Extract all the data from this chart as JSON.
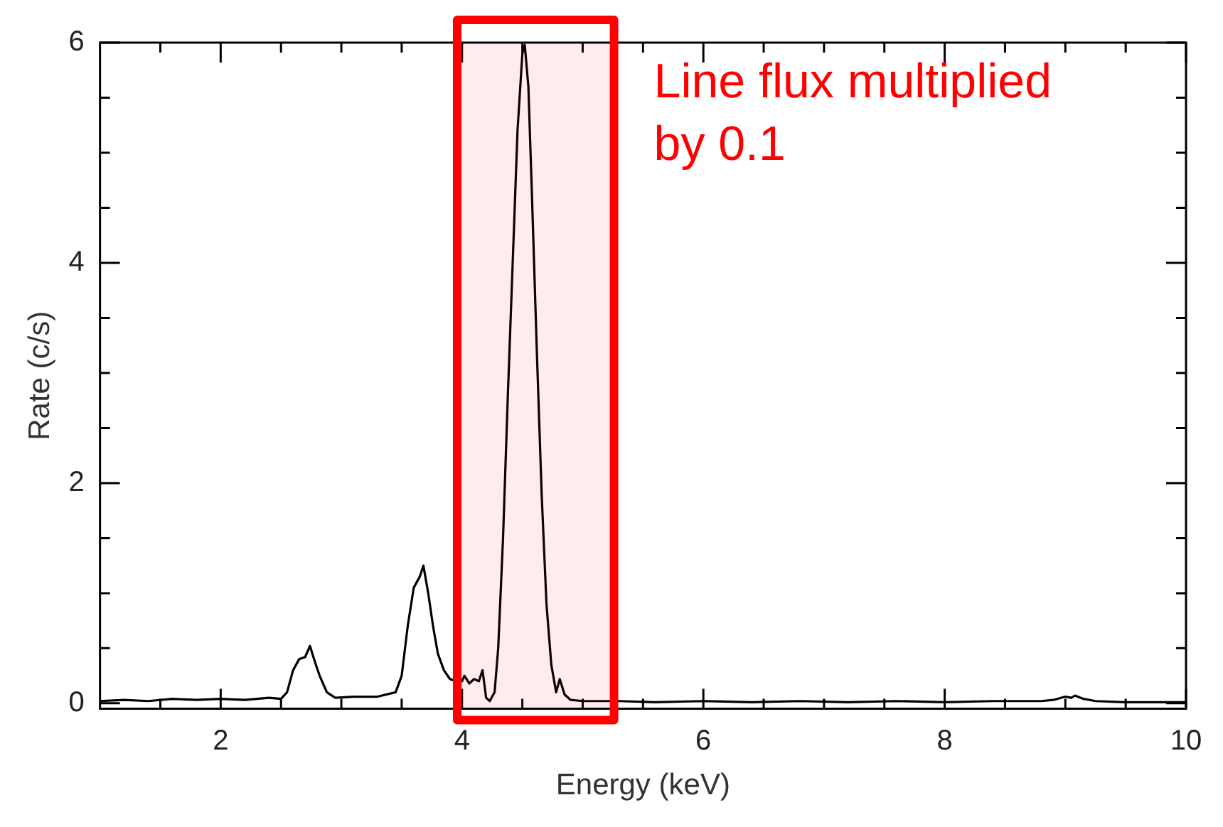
{
  "chart_data": {
    "type": "line",
    "xlabel": "Energy (keV)",
    "ylabel": "Rate (c/s)",
    "color": "#000000",
    "x": [
      1.0,
      1.2,
      1.4,
      1.6,
      1.8,
      2.0,
      2.2,
      2.4,
      2.5,
      2.55,
      2.6,
      2.65,
      2.7,
      2.74,
      2.78,
      2.82,
      2.88,
      2.95,
      3.1,
      3.3,
      3.45,
      3.5,
      3.55,
      3.6,
      3.65,
      3.68,
      3.72,
      3.76,
      3.8,
      3.85,
      3.9,
      3.95,
      4.0,
      4.02,
      4.06,
      4.1,
      4.14,
      4.17,
      4.2,
      4.23,
      4.27,
      4.3,
      4.34,
      4.38,
      4.42,
      4.46,
      4.5,
      4.52,
      4.55,
      4.58,
      4.62,
      4.66,
      4.7,
      4.74,
      4.78,
      4.81,
      4.85,
      4.9,
      5.0,
      5.3,
      5.6,
      6.0,
      6.4,
      6.8,
      7.2,
      7.6,
      8.0,
      8.4,
      8.8,
      8.9,
      9.0,
      9.05,
      9.08,
      9.15,
      9.25,
      9.5,
      10.0
    ],
    "values": [
      0.02,
      0.03,
      0.02,
      0.04,
      0.03,
      0.04,
      0.03,
      0.05,
      0.04,
      0.1,
      0.3,
      0.4,
      0.42,
      0.52,
      0.38,
      0.25,
      0.1,
      0.05,
      0.06,
      0.06,
      0.1,
      0.25,
      0.7,
      1.05,
      1.15,
      1.25,
      1.0,
      0.7,
      0.45,
      0.3,
      0.22,
      0.2,
      0.2,
      0.25,
      0.18,
      0.22,
      0.2,
      0.3,
      0.05,
      0.02,
      0.1,
      0.5,
      1.5,
      2.8,
      4.0,
      5.2,
      5.9,
      5.98,
      5.6,
      4.6,
      3.2,
      1.9,
      0.9,
      0.35,
      0.1,
      0.22,
      0.08,
      0.03,
      0.02,
      0.02,
      0.01,
      0.02,
      0.01,
      0.02,
      0.01,
      0.02,
      0.01,
      0.02,
      0.02,
      0.03,
      0.06,
      0.05,
      0.07,
      0.04,
      0.02,
      0.01,
      0.01
    ],
    "xlim": [
      1,
      10
    ],
    "ylim": [
      -0.05,
      6
    ],
    "xticks": [
      {
        "value": 1.5,
        "label": null
      },
      2,
      {
        "value": 2.5,
        "label": null
      },
      {
        "value": 3,
        "label": null
      },
      {
        "value": 3.5,
        "label": null
      },
      4,
      {
        "value": 4.5,
        "label": null
      },
      {
        "value": 5,
        "label": null
      },
      {
        "value": 5.5,
        "label": null
      },
      6,
      {
        "value": 6.5,
        "label": null
      },
      {
        "value": 7,
        "label": null
      },
      {
        "value": 7.5,
        "label": null
      },
      8,
      {
        "value": 8.5,
        "label": null
      },
      {
        "value": 9,
        "label": null
      },
      {
        "value": 9.5,
        "label": null
      },
      10
    ],
    "yticks": [
      0,
      {
        "value": 0.5,
        "label": null
      },
      {
        "value": 1,
        "label": null
      },
      {
        "value": 1.5,
        "label": null
      },
      2,
      {
        "value": 2.5,
        "label": null
      },
      {
        "value": 3,
        "label": null
      },
      {
        "value": 3.5,
        "label": null
      },
      4,
      {
        "value": 4.5,
        "label": null
      },
      {
        "value": 5,
        "label": null
      },
      {
        "value": 5.5,
        "label": null
      },
      6
    ],
    "bands": [
      {
        "axis": "x",
        "from": 3.96,
        "to": 5.26,
        "label": "Line flux multiplied by 0.1",
        "color": "#ff0000"
      }
    ]
  }
}
